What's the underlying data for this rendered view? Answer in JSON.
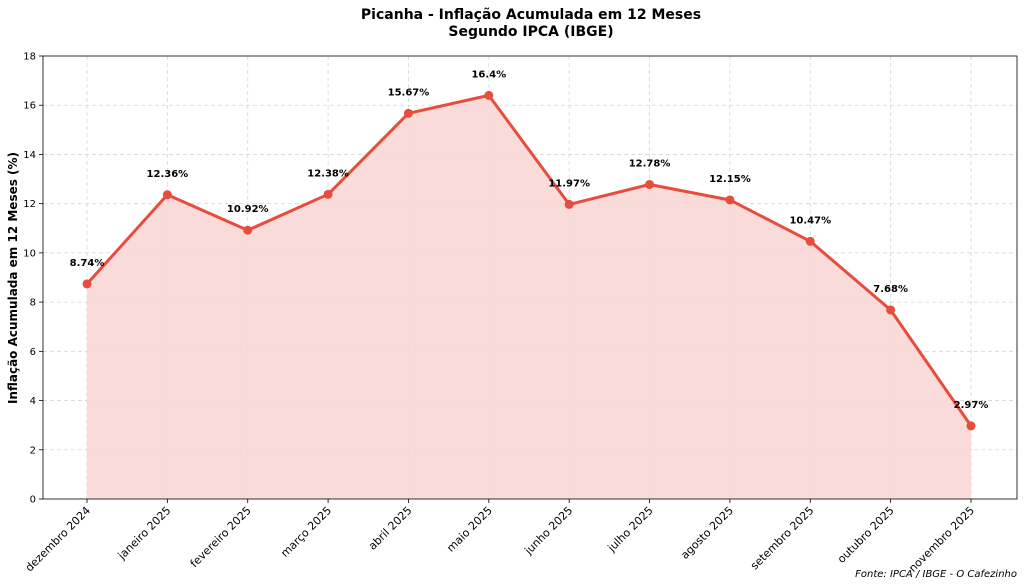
{
  "chart_data": {
    "type": "area",
    "title": "Picanha - Inflação Acumulada em 12 Meses",
    "subtitle": "Segundo IPCA (IBGE)",
    "xlabel": "",
    "ylabel": "Inflação Acumulada em 12 Meses (%)",
    "categories": [
      "dezembro 2024",
      "janeiro 2025",
      "fevereiro 2025",
      "março 2025",
      "abril 2025",
      "maio 2025",
      "junho 2025",
      "julho 2025",
      "agosto 2025",
      "setembro 2025",
      "outubro 2025",
      "novembro 2025"
    ],
    "values": [
      8.74,
      12.36,
      10.92,
      12.38,
      15.67,
      16.4,
      11.97,
      12.78,
      12.15,
      10.47,
      7.68,
      2.97
    ],
    "data_labels": [
      "8.74%",
      "12.36%",
      "10.92%",
      "12.38%",
      "15.67%",
      "16.4%",
      "11.97%",
      "12.78%",
      "12.15%",
      "10.47%",
      "7.68%",
      "2.97%"
    ],
    "ylim": [
      0,
      18
    ],
    "yticks": [
      0,
      2,
      4,
      6,
      8,
      10,
      12,
      14,
      16,
      18
    ],
    "grid": true,
    "line_color": "#e74c3c",
    "fill_color": "#f8d7d5",
    "source": "Fonte: IPCA / IBGE - O Cafezinho"
  }
}
